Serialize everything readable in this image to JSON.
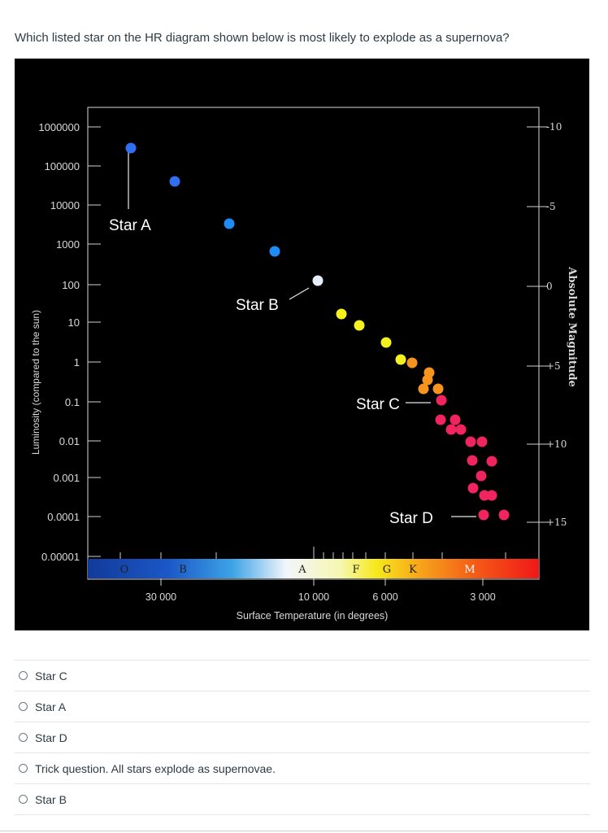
{
  "question": {
    "text": "Which listed star on the HR diagram shown below is most likely to explode as a supernova?"
  },
  "diagram": {
    "y_axis_label": "Luminosity (compared to the sun)",
    "x_axis_label": "Surface Temperature (in degrees)",
    "right_axis_label": "Absolute Magnitude",
    "luminosity_ticks": [
      "1000000",
      "100000",
      "10000",
      "1000",
      "100",
      "10",
      "1",
      "0.1",
      "0.01",
      "0.001",
      "0.0001",
      "0.00001"
    ],
    "magnitude_ticks": [
      "-10",
      "-5",
      "0",
      "+5",
      "+10",
      "+15"
    ],
    "temperature_ticks": [
      "30 000",
      "10 000",
      "6 000",
      "3 000"
    ],
    "spectral_classes": [
      "O",
      "B",
      "A",
      "F",
      "G",
      "K",
      "M"
    ],
    "star_labels": [
      "Star A",
      "Star B",
      "Star C",
      "Star D"
    ],
    "colors": {
      "blue": "#2f6ff0",
      "light_blue": "#1f8cf5",
      "white": "#e6eefa",
      "yellow": "#f5f11f",
      "orange": "#f7941d",
      "red": "#f0245e"
    }
  },
  "answers": [
    {
      "label": "Star C"
    },
    {
      "label": "Star A"
    },
    {
      "label": "Star D"
    },
    {
      "label": "Trick question. All stars explode as supernovae."
    },
    {
      "label": "Star B"
    }
  ]
}
